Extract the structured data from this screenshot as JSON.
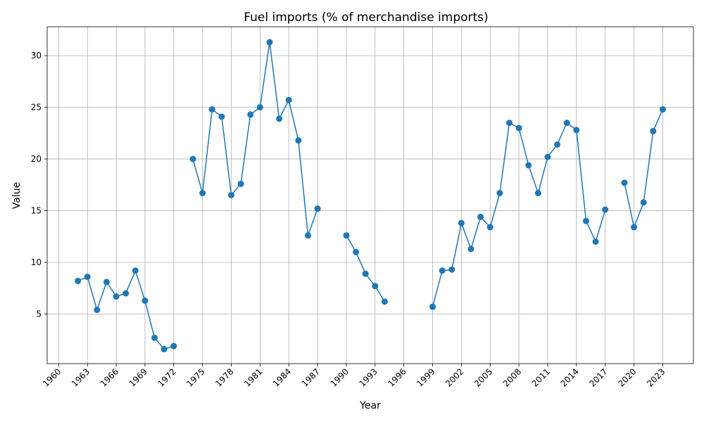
{
  "chart_data": {
    "type": "line",
    "title": "Fuel imports (% of merchandise imports)",
    "xlabel": "Year",
    "ylabel": "Value",
    "xlim": [
      1959,
      1962.8
    ],
    "ylim": [
      0.2,
      32.8
    ],
    "xticks": [
      1960,
      1963,
      1966,
      1969,
      1972,
      1975,
      1978,
      1981,
      1984,
      1987,
      1990,
      1993,
      1996,
      1999,
      2002,
      2005,
      2008,
      2011,
      2014,
      2017,
      2020,
      2023
    ],
    "yticks": [
      5,
      10,
      15,
      20,
      25,
      30
    ],
    "grid": true,
    "color": "#1f77b4",
    "series": [
      {
        "points": [
          [
            1962,
            8.2
          ],
          [
            1963,
            8.6
          ],
          [
            1964,
            5.4
          ],
          [
            1965,
            8.1
          ],
          [
            1966,
            6.7
          ],
          [
            1967,
            7.0
          ],
          [
            1968,
            9.2
          ],
          [
            1969,
            6.3
          ],
          [
            1970,
            2.7
          ],
          [
            1971,
            1.6
          ],
          [
            1972,
            1.9
          ],
          [
            1973,
            null
          ],
          [
            1974,
            20.0
          ],
          [
            1975,
            16.7
          ],
          [
            1976,
            24.8
          ],
          [
            1977,
            24.1
          ],
          [
            1978,
            16.5
          ],
          [
            1979,
            17.6
          ],
          [
            1980,
            24.3
          ],
          [
            1981,
            25.0
          ],
          [
            1982,
            31.3
          ],
          [
            1983,
            23.9
          ],
          [
            1984,
            25.7
          ],
          [
            1985,
            21.8
          ],
          [
            1986,
            12.6
          ],
          [
            1987,
            15.2
          ],
          [
            1988,
            null
          ],
          [
            1989,
            null
          ],
          [
            1990,
            12.6
          ],
          [
            1991,
            11.0
          ],
          [
            1992,
            8.9
          ],
          [
            1993,
            7.7
          ],
          [
            1994,
            6.2
          ],
          [
            1995,
            null
          ],
          [
            1996,
            null
          ],
          [
            1997,
            null
          ],
          [
            1998,
            null
          ],
          [
            1999,
            5.7
          ],
          [
            2000,
            9.2
          ],
          [
            2001,
            9.3
          ],
          [
            2002,
            13.8
          ],
          [
            2003,
            11.3
          ],
          [
            2004,
            14.4
          ],
          [
            2005,
            13.4
          ],
          [
            2006,
            16.7
          ],
          [
            2007,
            23.5
          ],
          [
            2008,
            23.0
          ],
          [
            2009,
            19.4
          ],
          [
            2010,
            16.7
          ],
          [
            2011,
            20.2
          ],
          [
            2012,
            21.4
          ],
          [
            2013,
            23.5
          ],
          [
            2014,
            22.8
          ],
          [
            2015,
            14.0
          ],
          [
            2016,
            12.0
          ],
          [
            2017,
            15.1
          ],
          [
            2018,
            null
          ],
          [
            2019,
            17.7
          ],
          [
            2020,
            13.4
          ],
          [
            2021,
            15.8
          ],
          [
            2022,
            22.7
          ],
          [
            2023,
            24.8
          ]
        ]
      }
    ]
  }
}
